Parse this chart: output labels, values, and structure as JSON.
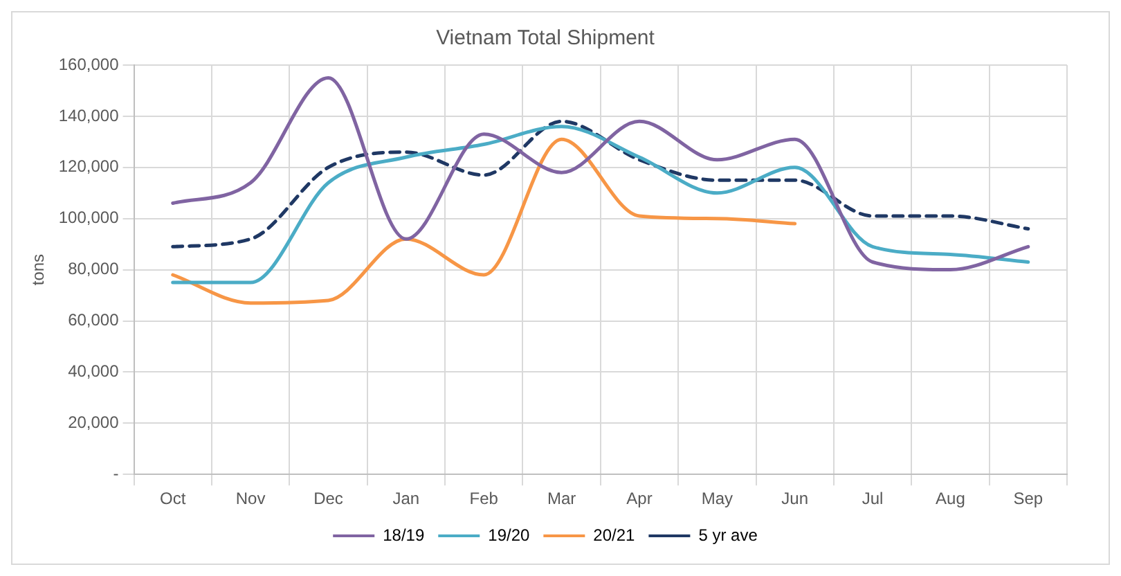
{
  "chart_data": {
    "type": "line",
    "title": "Vietnam Total Shipment",
    "ylabel": "tons",
    "categories": [
      "Oct",
      "Nov",
      "Dec",
      "Jan",
      "Feb",
      "Mar",
      "Apr",
      "May",
      "Jun",
      "Jul",
      "Aug",
      "Sep"
    ],
    "series": [
      {
        "name": "18/19",
        "color": "#8064a2",
        "values": [
          106000,
          114000,
          155000,
          92000,
          133000,
          118000,
          138000,
          123000,
          131000,
          83000,
          80000,
          89000
        ]
      },
      {
        "name": "19/20",
        "color": "#4bacc6",
        "values": [
          75000,
          75000,
          114000,
          124000,
          129000,
          136000,
          124000,
          110000,
          120000,
          89000,
          86000,
          83000
        ]
      },
      {
        "name": "20/21",
        "color": "#f79646",
        "values": [
          78000,
          67000,
          68000,
          92000,
          78000,
          131000,
          101000,
          100000,
          98000,
          null,
          null,
          null
        ]
      },
      {
        "name": "5 yr ave",
        "color": "#1f3864",
        "line_style": "dashed",
        "values": [
          89000,
          92000,
          120000,
          126000,
          117000,
          138000,
          123000,
          115000,
          115000,
          101000,
          101000,
          96000
        ]
      }
    ],
    "ylim": [
      0,
      160000
    ],
    "yticks": [
      {
        "value": 0,
        "label": "-"
      },
      {
        "value": 20000,
        "label": "20,000"
      },
      {
        "value": 40000,
        "label": "40,000"
      },
      {
        "value": 60000,
        "label": "60,000"
      },
      {
        "value": 80000,
        "label": "80,000"
      },
      {
        "value": 100000,
        "label": "100,000"
      },
      {
        "value": 120000,
        "label": "120,000"
      },
      {
        "value": 140000,
        "label": "140,000"
      },
      {
        "value": 160000,
        "label": "160,000"
      }
    ],
    "grid": true,
    "legend": "bottom",
    "marker": "none"
  }
}
